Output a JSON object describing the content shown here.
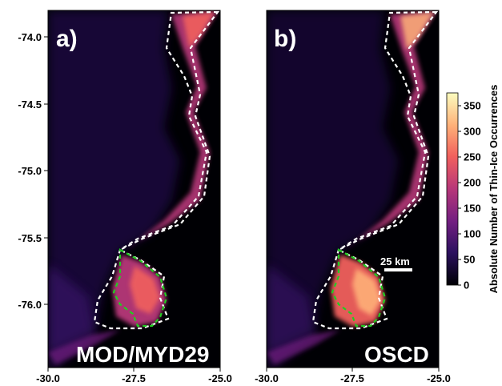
{
  "axes": {
    "x_ticks": [
      "-30.0",
      "-27.5",
      "-25.0"
    ],
    "y_ticks": [
      "-74.0",
      "-74.5",
      "-75.0",
      "-75.5",
      "-76.0"
    ]
  },
  "panels": [
    {
      "letter": "a)",
      "label": "MOD/MYD29"
    },
    {
      "letter": "b)",
      "label": "OSCD"
    }
  ],
  "colorbar": {
    "title": "Absolute Number of Thin-Ice Occurrences",
    "ticks": [
      "0",
      "50",
      "100",
      "150",
      "200",
      "250",
      "300",
      "350"
    ],
    "min": 0,
    "max": 375,
    "colors": [
      "#000004",
      "#2c115f",
      "#721f81",
      "#b73779",
      "#f1605d",
      "#feb078",
      "#fcfdbf"
    ]
  },
  "scale_bar": {
    "label": "25 km"
  },
  "colors": {
    "background": "#000004",
    "outline_white": "#ffffff",
    "outline_green": "#22cc22"
  }
}
